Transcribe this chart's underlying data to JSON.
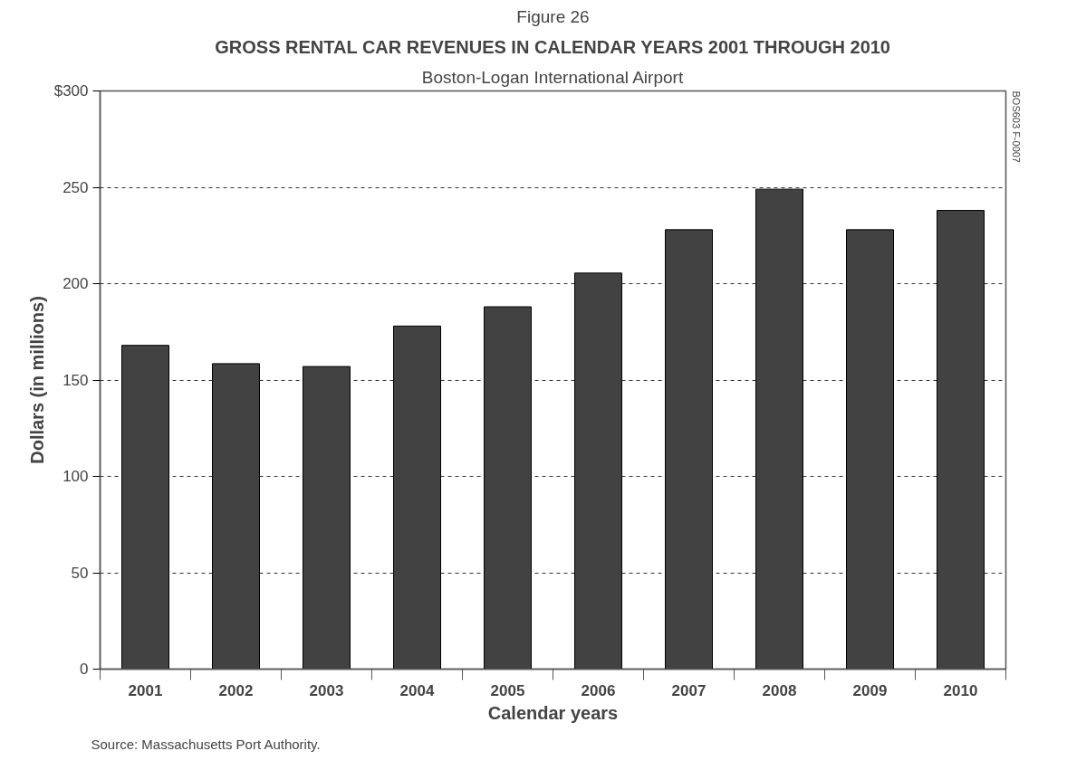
{
  "chart_data": {
    "type": "bar",
    "title": "GROSS RENTAL CAR REVENUES IN CALENDAR YEARS 2001 THROUGH 2010",
    "subtitle": "Boston-Logan International Airport",
    "xlabel": "Calendar years",
    "ylabel": "Dollars (in millions)",
    "categories": [
      "2001",
      "2002",
      "2003",
      "2004",
      "2005",
      "2006",
      "2007",
      "2008",
      "2009",
      "2010"
    ],
    "values": [
      168,
      158.5,
      157,
      178,
      188,
      205.5,
      228,
      249,
      228,
      238
    ],
    "color": "#424242",
    "ylim": [
      0,
      300
    ],
    "yticks": [
      0,
      50,
      100,
      150,
      200,
      250,
      {
        "value": 300,
        "label": "$300"
      }
    ],
    "grid": "y",
    "annotations": [
      "Figure 26",
      "Source:    Massachusetts Port Authority.",
      "BOS603 F-0007"
    ]
  }
}
